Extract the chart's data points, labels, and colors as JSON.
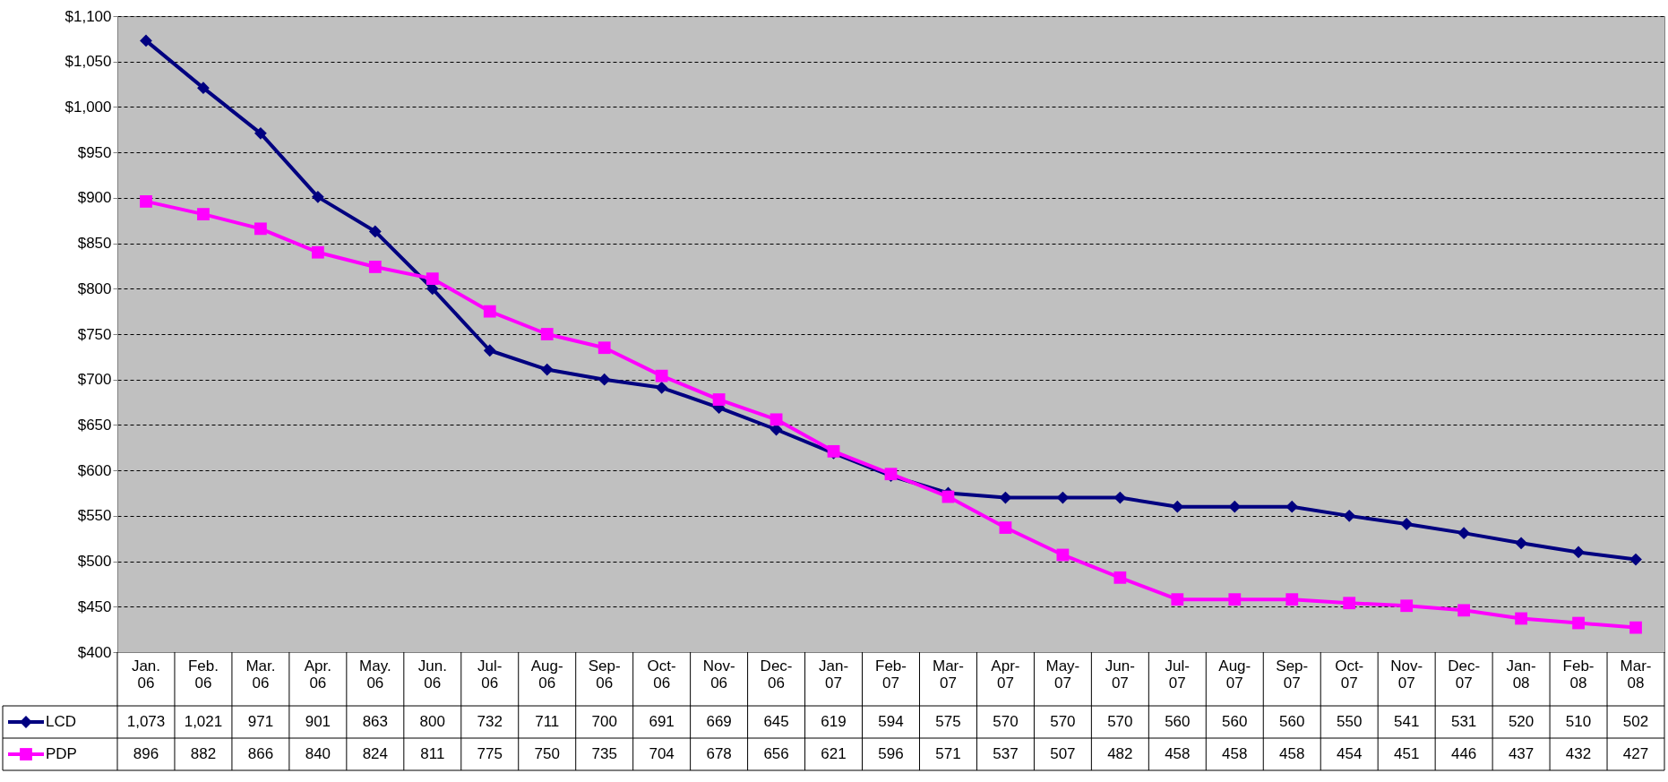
{
  "chart_data": {
    "type": "line",
    "categories": [
      "Jan. 06",
      "Feb. 06",
      "Mar. 06",
      "Apr. 06",
      "May. 06",
      "Jun. 06",
      "Jul-06",
      "Aug-06",
      "Sep-06",
      "Oct-06",
      "Nov-06",
      "Dec-06",
      "Jan-07",
      "Feb-07",
      "Mar-07",
      "Apr-07",
      "May-07",
      "Jun-07",
      "Jul-07",
      "Aug-07",
      "Sep-07",
      "Oct-07",
      "Nov-07",
      "Dec-07",
      "Jan-08",
      "Feb-08",
      "Mar-08"
    ],
    "series": [
      {
        "name": "LCD",
        "color": "#000080",
        "marker": "diamond",
        "values": [
          1073,
          1021,
          971,
          901,
          863,
          800,
          732,
          711,
          700,
          691,
          669,
          645,
          619,
          594,
          575,
          570,
          570,
          570,
          560,
          560,
          560,
          550,
          541,
          531,
          520,
          510,
          502
        ],
        "value_labels": [
          "1,073",
          "1,021",
          "971",
          "901",
          "863",
          "800",
          "732",
          "711",
          "700",
          "691",
          "669",
          "645",
          "619",
          "594",
          "575",
          "570",
          "570",
          "570",
          "560",
          "560",
          "560",
          "550",
          "541",
          "531",
          "520",
          "510",
          "502"
        ]
      },
      {
        "name": "PDP",
        "color": "#ff00ff",
        "marker": "square",
        "values": [
          896,
          882,
          866,
          840,
          824,
          811,
          775,
          750,
          735,
          704,
          678,
          656,
          621,
          596,
          571,
          537,
          507,
          482,
          458,
          458,
          458,
          454,
          451,
          446,
          437,
          432,
          427
        ],
        "value_labels": [
          "896",
          "882",
          "866",
          "840",
          "824",
          "811",
          "775",
          "750",
          "735",
          "704",
          "678",
          "656",
          "621",
          "596",
          "571",
          "537",
          "507",
          "482",
          "458",
          "458",
          "458",
          "454",
          "451",
          "446",
          "437",
          "432",
          "427"
        ]
      }
    ],
    "ylim": [
      400,
      1100
    ],
    "yticks": [
      {
        "value": 400,
        "label": "$400"
      },
      {
        "value": 450,
        "label": "$450"
      },
      {
        "value": 500,
        "label": "$500"
      },
      {
        "value": 550,
        "label": "$550"
      },
      {
        "value": 600,
        "label": "$600"
      },
      {
        "value": 650,
        "label": "$650"
      },
      {
        "value": 700,
        "label": "$700"
      },
      {
        "value": 750,
        "label": "$750"
      },
      {
        "value": 800,
        "label": "$800"
      },
      {
        "value": 850,
        "label": "$850"
      },
      {
        "value": 900,
        "label": "$900"
      },
      {
        "value": 950,
        "label": "$950"
      },
      {
        "value": 1000,
        "label": "$1,000"
      },
      {
        "value": 1050,
        "label": "$1,050"
      },
      {
        "value": 1100,
        "label": "$1,100"
      }
    ],
    "grid": "y",
    "legend": "bottom",
    "line_style": "solid"
  }
}
